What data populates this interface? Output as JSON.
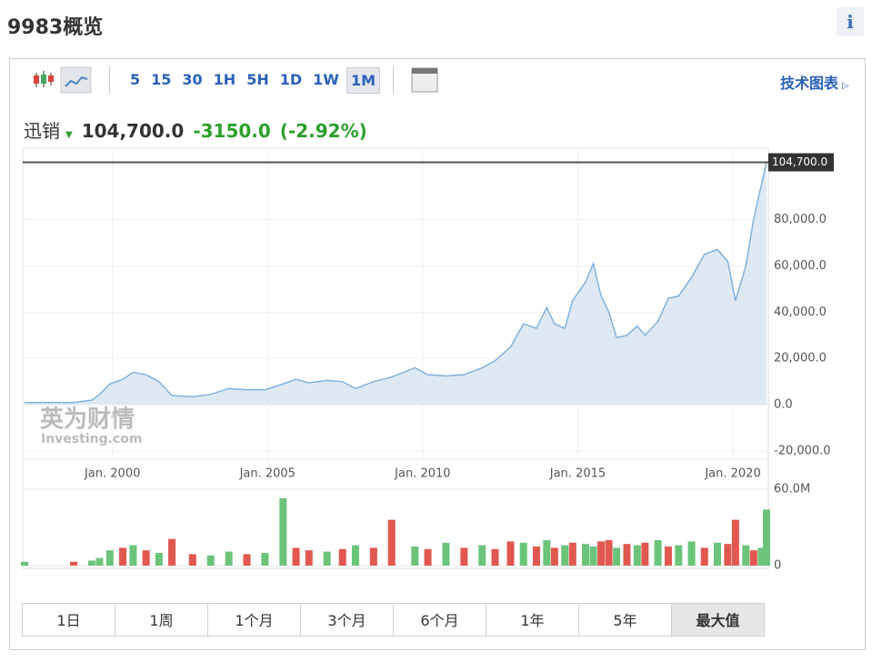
{
  "header": {
    "title": "9983概览",
    "info": "i"
  },
  "toolbar": {
    "intervals": [
      "5",
      "15",
      "30",
      "1H",
      "5H",
      "1D",
      "1W",
      "1M"
    ],
    "active_interval": 7,
    "technical_link": "技术图表"
  },
  "quote": {
    "name": "迅销",
    "price": "104,700.0",
    "change": "-3150.0",
    "change_pct": "(-2.92%)"
  },
  "watermark": {
    "brand": "英为财情",
    "site": "Investing.com"
  },
  "ranges": {
    "items": [
      "1日",
      "1周",
      "1个月",
      "3个月",
      "6个月",
      "1年",
      "5年",
      "最大值"
    ],
    "active": 7
  },
  "chart_data": [
    {
      "type": "area",
      "color": "#7fb2de",
      "fill": "#dfe9f3",
      "grid": true,
      "x": [
        "1997-03",
        "1998-10",
        "1999-05",
        "1999-08",
        "1999-12",
        "2000-05",
        "2000-09",
        "2001-02",
        "2001-07",
        "2001-12",
        "2002-08",
        "2003-03",
        "2003-10",
        "2004-05",
        "2004-12",
        "2005-07",
        "2005-12",
        "2006-05",
        "2006-12",
        "2007-06",
        "2007-11",
        "2008-06",
        "2009-01",
        "2009-10",
        "2010-03",
        "2010-10",
        "2011-05",
        "2011-12",
        "2012-05",
        "2012-11",
        "2013-04",
        "2013-09",
        "2014-01",
        "2014-04",
        "2014-08",
        "2014-11",
        "2015-04",
        "2015-07",
        "2015-10",
        "2016-01",
        "2016-04",
        "2016-08",
        "2016-12",
        "2017-03",
        "2017-08",
        "2017-12",
        "2018-04",
        "2018-09",
        "2019-02",
        "2019-07",
        "2019-11",
        "2020-02",
        "2020-06",
        "2020-09",
        "2020-12",
        "2021-02"
      ],
      "values": [
        1000,
        1000,
        2000,
        4500,
        9000,
        11000,
        14000,
        13000,
        10000,
        4000,
        3500,
        4500,
        7000,
        6500,
        6500,
        9000,
        11000,
        9500,
        10500,
        10000,
        7000,
        10000,
        12000,
        16000,
        13000,
        12500,
        13000,
        16000,
        19000,
        25000,
        35000,
        33000,
        42000,
        35000,
        33000,
        45000,
        53000,
        61000,
        47000,
        40000,
        29000,
        30000,
        34000,
        30000,
        36000,
        46000,
        47000,
        55000,
        65000,
        67000,
        62000,
        45000,
        60000,
        80000,
        95000,
        104700
      ],
      "xlim": [
        "1997-03",
        "2021-02"
      ],
      "xticks": [
        {
          "value": "2000-01",
          "label": "Jan. 2000"
        },
        {
          "value": "2005-01",
          "label": "Jan. 2005"
        },
        {
          "value": "2010-01",
          "label": "Jan. 2010"
        },
        {
          "value": "2015-01",
          "label": "Jan. 2015"
        },
        {
          "value": "2020-01",
          "label": "Jan. 2020"
        }
      ],
      "ylim": [
        -23500,
        110000
      ],
      "yticks": [
        {
          "value": -20000,
          "label": "-20,000.0"
        },
        {
          "value": 0,
          "label": "0.0"
        },
        {
          "value": 20000,
          "label": "20,000.0"
        },
        {
          "value": 40000,
          "label": "40,000.0"
        },
        {
          "value": 60000,
          "label": "60,000.0"
        },
        {
          "value": 80000,
          "label": "80,000.0"
        }
      ],
      "price_line": {
        "value": 104700,
        "label": "104,700.0"
      }
    },
    {
      "type": "bar",
      "x": [
        "1997-03",
        "1998-10",
        "1999-05",
        "1999-08",
        "1999-12",
        "2000-05",
        "2000-09",
        "2001-02",
        "2001-07",
        "2001-12",
        "2002-08",
        "2003-03",
        "2003-10",
        "2004-05",
        "2004-12",
        "2005-07",
        "2005-12",
        "2006-05",
        "2006-12",
        "2007-06",
        "2007-11",
        "2008-06",
        "2009-01",
        "2009-10",
        "2010-03",
        "2010-10",
        "2011-05",
        "2011-12",
        "2012-05",
        "2012-11",
        "2013-04",
        "2013-09",
        "2014-01",
        "2014-04",
        "2014-08",
        "2014-11",
        "2015-04",
        "2015-07",
        "2015-10",
        "2016-01",
        "2016-04",
        "2016-08",
        "2016-12",
        "2017-03",
        "2017-08",
        "2017-12",
        "2018-04",
        "2018-09",
        "2019-02",
        "2019-07",
        "2019-11",
        "2020-02",
        "2020-06",
        "2020-09",
        "2020-12",
        "2021-02"
      ],
      "values": [
        3000000,
        3000000,
        4000000,
        6000000,
        12000000,
        14000000,
        16000000,
        12000000,
        10000000,
        21000000,
        9000000,
        8000000,
        11000000,
        9000000,
        10000000,
        53000000,
        14000000,
        12000000,
        11000000,
        13000000,
        16000000,
        14000000,
        36000000,
        15000000,
        13000000,
        18000000,
        14000000,
        16000000,
        13000000,
        19000000,
        18000000,
        15000000,
        20000000,
        14000000,
        16000000,
        18000000,
        17000000,
        15000000,
        19000000,
        20000000,
        14000000,
        17000000,
        16000000,
        18000000,
        20000000,
        15000000,
        16000000,
        19000000,
        14000000,
        18000000,
        17000000,
        36000000,
        16000000,
        12000000,
        14000000,
        44000000
      ],
      "colors": [
        "#6cc47a",
        "#e0584f",
        "#6cc47a",
        "#6cc47a",
        "#6cc47a",
        "#e0584f",
        "#6cc47a",
        "#e0584f",
        "#6cc47a",
        "#e0584f",
        "#e0584f",
        "#6cc47a",
        "#6cc47a",
        "#e0584f",
        "#6cc47a",
        "#6cc47a",
        "#e0584f",
        "#e0584f",
        "#6cc47a",
        "#e0584f",
        "#6cc47a",
        "#e0584f",
        "#e0584f",
        "#6cc47a",
        "#e0584f",
        "#6cc47a",
        "#e0584f",
        "#6cc47a",
        "#e0584f",
        "#e0584f",
        "#6cc47a",
        "#e0584f",
        "#6cc47a",
        "#e0584f",
        "#6cc47a",
        "#e0584f",
        "#6cc47a",
        "#6cc47a",
        "#e0584f",
        "#e0584f",
        "#6cc47a",
        "#e0584f",
        "#6cc47a",
        "#e0584f",
        "#6cc47a",
        "#e0584f",
        "#6cc47a",
        "#6cc47a",
        "#e0584f",
        "#6cc47a",
        "#e0584f",
        "#e0584f",
        "#6cc47a",
        "#e0584f",
        "#6cc47a",
        "#6cc47a"
      ],
      "xlim": [
        "1997-03",
        "2021-02"
      ],
      "ylim": [
        0,
        60000000
      ],
      "yticks": [
        0,
        {
          "value": 60000000,
          "label": "60.0M"
        }
      ]
    }
  ]
}
